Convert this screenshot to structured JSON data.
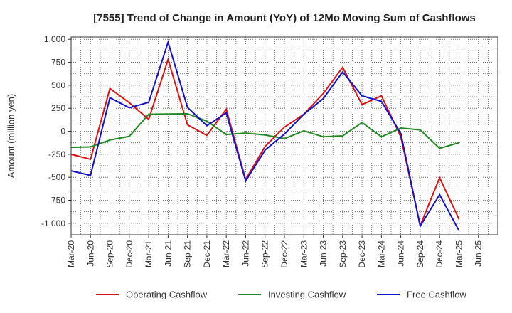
{
  "chart_data": {
    "type": "line",
    "title": "[7555]  Trend of Change in Amount (YoY) of 12Mo Moving Sum of Cashflows",
    "xlabel": "",
    "ylabel": "Amount (million yen)",
    "ylim": [
      -1125,
      1025
    ],
    "yticks": [
      1000,
      750,
      500,
      250,
      0,
      -250,
      -500,
      -750,
      -1000
    ],
    "ytick_labels": [
      "1,000",
      "750",
      "500",
      "250",
      "0",
      "-250",
      "-500",
      "-750",
      "-1,000"
    ],
    "categories": [
      "Mar-20",
      "Jun-20",
      "Sep-20",
      "Dec-20",
      "Mar-21",
      "Jun-21",
      "Sep-21",
      "Dec-21",
      "Mar-22",
      "Jun-22",
      "Sep-22",
      "Dec-22",
      "Mar-23",
      "Jun-23",
      "Sep-23",
      "Dec-23",
      "Mar-24",
      "Jun-24",
      "Sep-24",
      "Dec-24",
      "Mar-25",
      "Jun-25"
    ],
    "grid": true,
    "legend_position": "bottom",
    "series": [
      {
        "name": "Operating Cashflow",
        "color": "#dd1111",
        "values": [
          -250,
          -305,
          465,
          310,
          130,
          780,
          70,
          -45,
          240,
          -525,
          -165,
          45,
          185,
          410,
          695,
          290,
          385,
          -60,
          -1025,
          -505,
          -955,
          null
        ]
      },
      {
        "name": "Investing Cashflow",
        "color": "#228822",
        "values": [
          -175,
          -170,
          -95,
          -55,
          185,
          188,
          190,
          110,
          -35,
          -20,
          -40,
          -80,
          5,
          -60,
          -50,
          95,
          -60,
          35,
          15,
          -185,
          -125,
          null
        ]
      },
      {
        "name": "Free Cashflow",
        "color": "#1111cc",
        "values": [
          -430,
          -480,
          365,
          255,
          315,
          968,
          260,
          60,
          200,
          -540,
          -205,
          -30,
          185,
          355,
          645,
          385,
          325,
          -25,
          -1030,
          -690,
          -1080,
          null
        ]
      }
    ]
  }
}
